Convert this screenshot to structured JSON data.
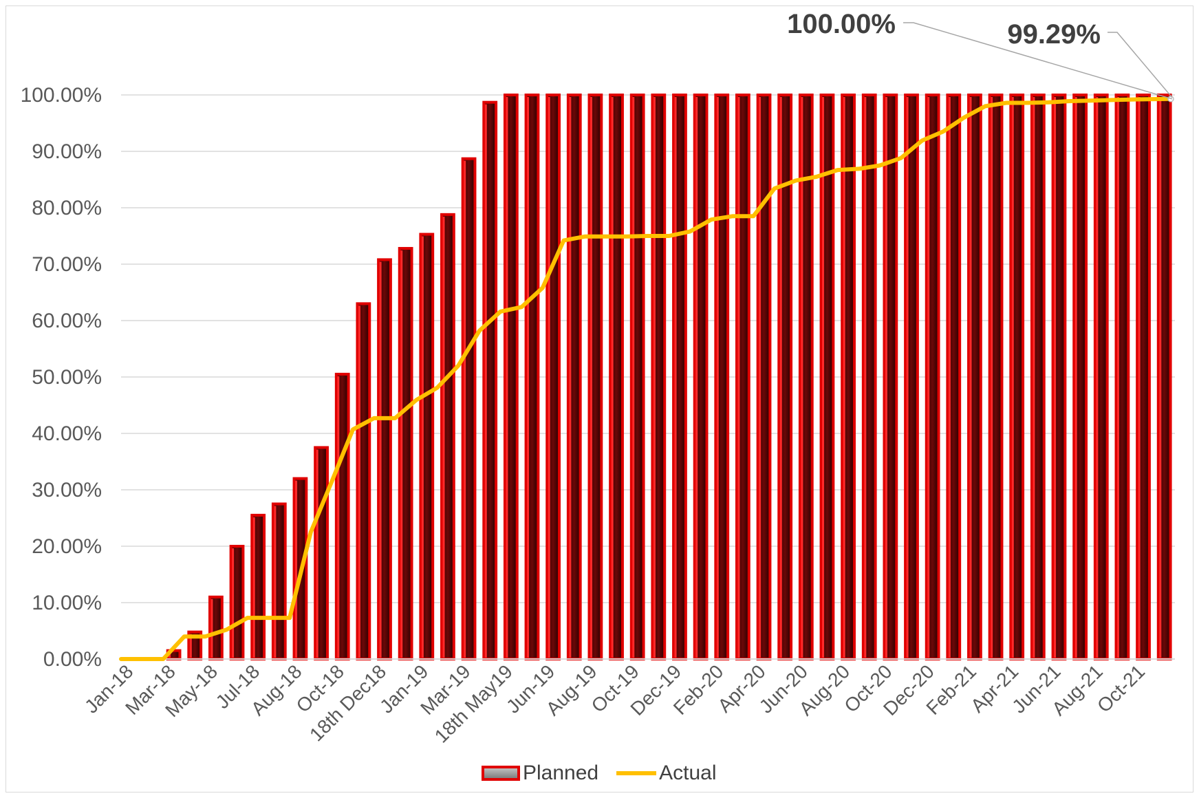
{
  "chart_data": {
    "type": "bar",
    "title": "",
    "xlabel": "",
    "ylabel": "",
    "ylim": [
      0,
      100
    ],
    "y_tick_labels": [
      "0.00%",
      "10.00%",
      "20.00%",
      "30.00%",
      "40.00%",
      "50.00%",
      "60.00%",
      "70.00%",
      "80.00%",
      "90.00%",
      "100.00%"
    ],
    "x_tick_labels": [
      "Jan-18",
      "Mar-18",
      "May-18",
      "Jul-18",
      "Aug-18",
      "Oct-18",
      "18th Dec18",
      "Jan-19",
      "Mar-19",
      "18th May19",
      "Jun-19",
      "Aug-19",
      "Oct-19",
      "Dec-19",
      "Feb-20",
      "Apr-20",
      "Jun-20",
      "Aug-20",
      "Oct-20",
      "Dec-20",
      "Feb-21",
      "Apr-21",
      "Jun-21",
      "Aug-21",
      "Oct-21"
    ],
    "grid": true,
    "legend_position": "bottom",
    "series": [
      {
        "name": "Planned",
        "type": "bar",
        "color": "#e00000",
        "values": [
          0,
          0,
          1.5,
          4.8,
          11,
          20,
          25.5,
          27.5,
          32,
          37.5,
          50.5,
          63,
          70.8,
          72.8,
          75.3,
          78.8,
          88.7,
          98.7,
          100,
          100,
          100,
          100,
          100,
          100,
          100,
          100,
          100,
          100,
          100,
          100,
          100,
          100,
          100,
          100,
          100,
          100,
          100,
          100,
          100,
          100,
          100,
          100,
          100,
          100,
          100,
          100,
          100,
          100,
          100,
          100
        ]
      },
      {
        "name": "Actual",
        "type": "line",
        "color": "#ffc000",
        "values": [
          0,
          0,
          0,
          4,
          4,
          5.2,
          7.3,
          7.3,
          7.3,
          22.5,
          31.5,
          40.7,
          42.7,
          42.7,
          45.9,
          48.1,
          52,
          58.2,
          61.6,
          62.4,
          65.8,
          74.2,
          74.9,
          74.9,
          74.9,
          75,
          75,
          75.8,
          77.9,
          78.5,
          78.5,
          83.4,
          84.8,
          85.5,
          86.7,
          86.9,
          87.5,
          88.8,
          91.9,
          93.5,
          96,
          98,
          98.6,
          98.6,
          98.7,
          98.9,
          99,
          99.1,
          99.2,
          99.29
        ]
      }
    ],
    "annotations": [
      {
        "text": "100.00%",
        "series": "Planned",
        "index": 49
      },
      {
        "text": "99.29%",
        "series": "Actual",
        "index": 49
      }
    ]
  },
  "legend": {
    "planned_label": "Planned",
    "actual_label": "Actual"
  }
}
